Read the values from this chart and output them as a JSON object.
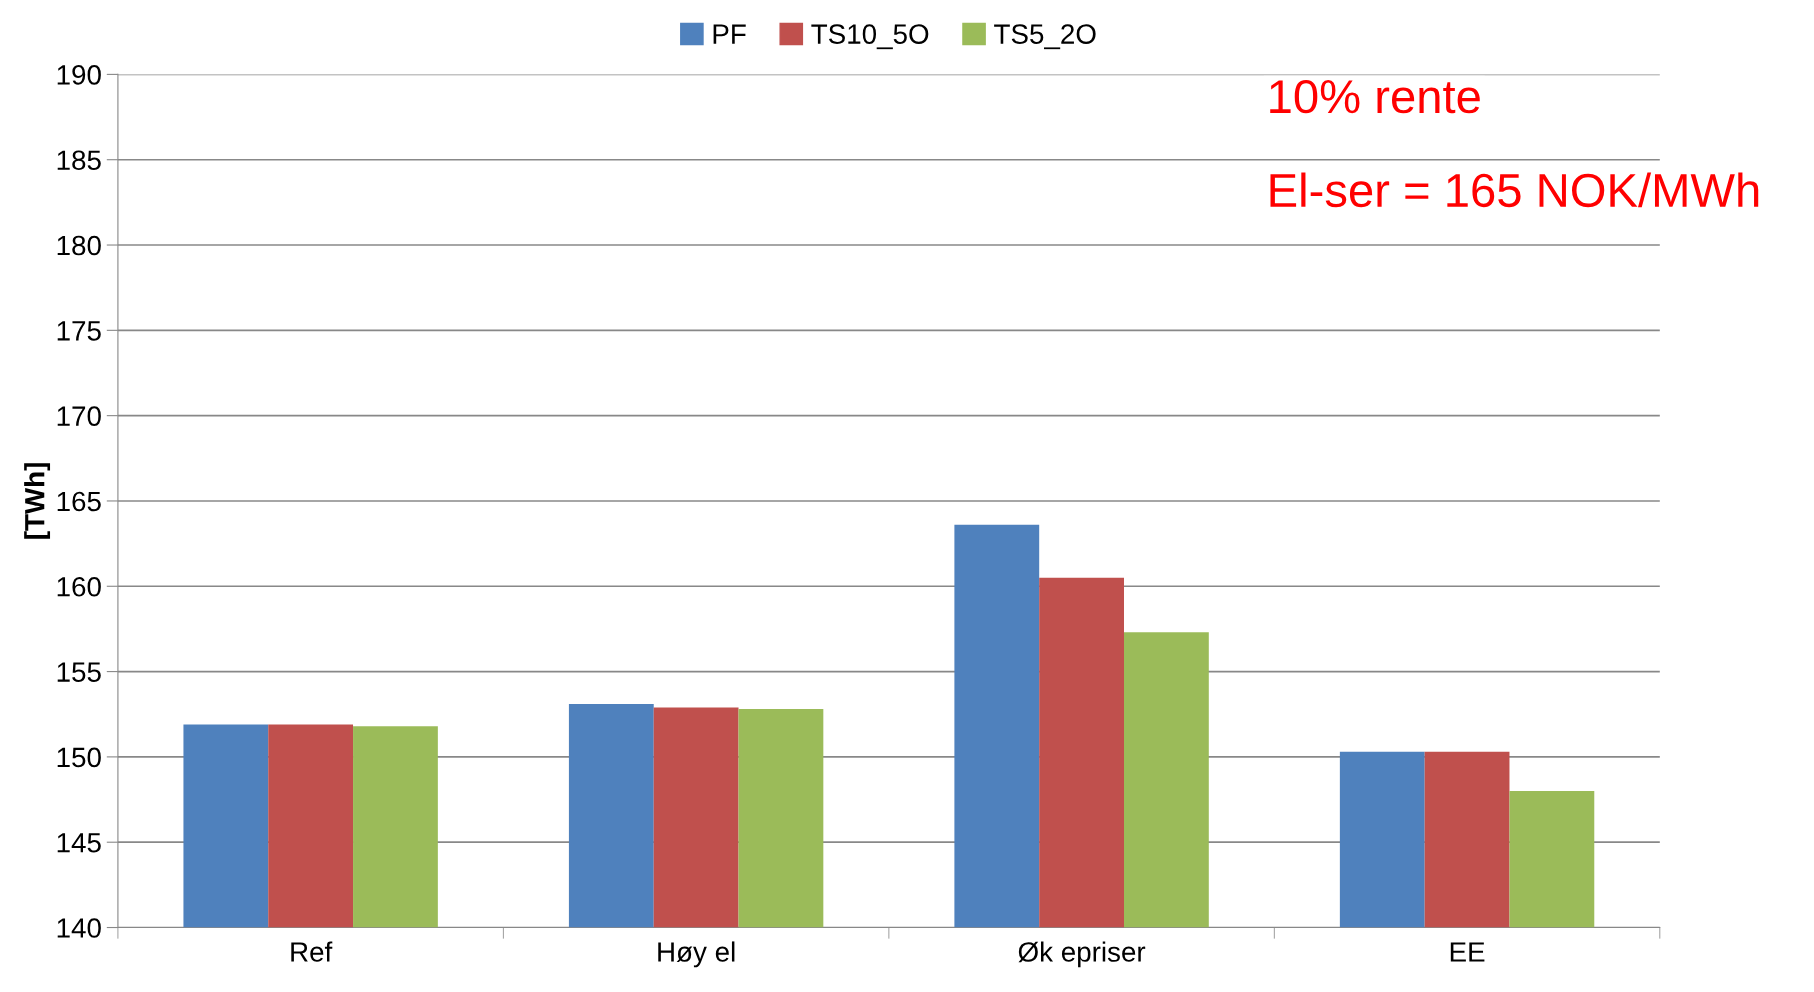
{
  "chart_data": {
    "type": "bar",
    "categories": [
      "Ref",
      "Høy el",
      "Øk epriser",
      "EE"
    ],
    "series": [
      {
        "name": "PF",
        "color": "#4f81bd",
        "values": [
          151.9,
          153.1,
          163.6,
          150.3
        ]
      },
      {
        "name": "TS10_5O",
        "color": "#c0504d",
        "values": [
          151.9,
          152.9,
          160.5,
          150.3
        ]
      },
      {
        "name": "TS5_2O",
        "color": "#9bbb59",
        "values": [
          151.8,
          152.8,
          157.3,
          148.0
        ]
      }
    ],
    "ylabel": "[TWh]",
    "ylim": [
      140,
      190
    ],
    "yticks": [
      140,
      145,
      150,
      155,
      160,
      165,
      170,
      175,
      180,
      185,
      190
    ],
    "grid": "y",
    "legend": "top",
    "annotations": [
      "10% rente",
      "El-ser = 165 NOK/MWh"
    ]
  }
}
